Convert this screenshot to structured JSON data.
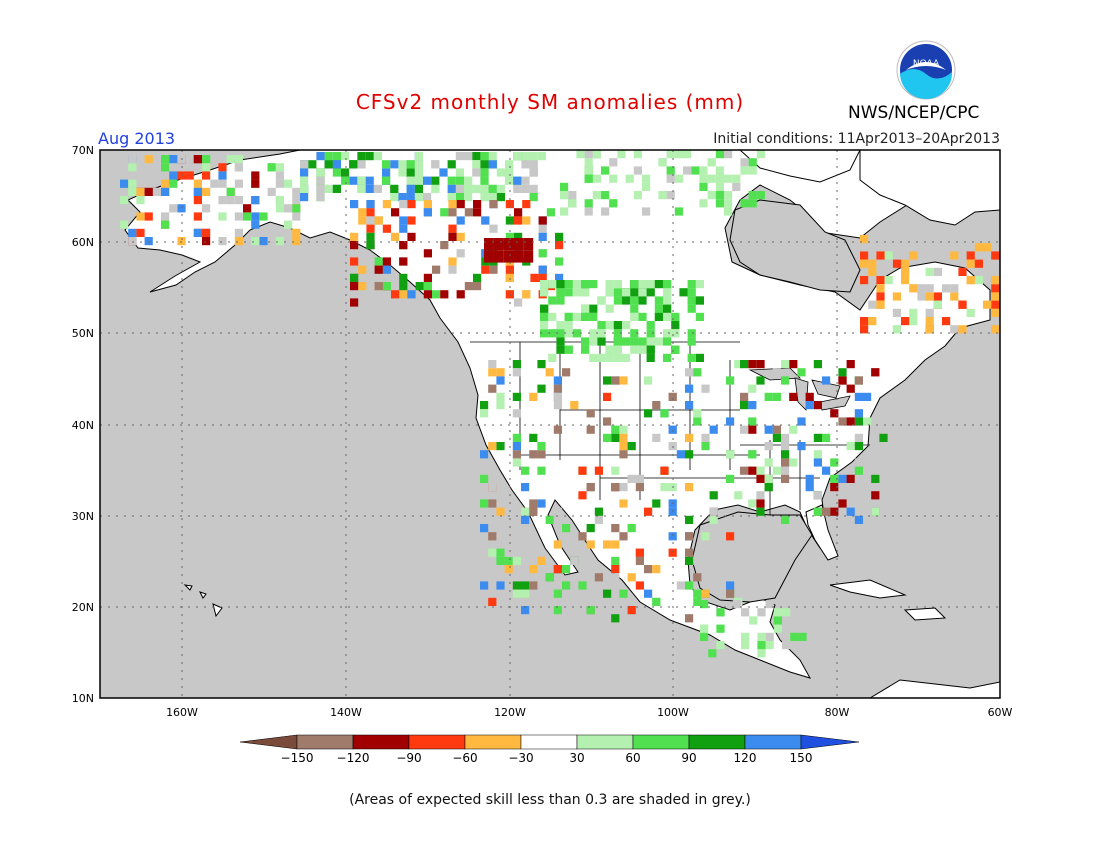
{
  "header": {
    "title": "CFSv2 monthly SM anomalies (mm)",
    "month": "Aug 2013",
    "initial_conditions": "Initial conditions: 11Apr2013–20Apr2013",
    "agency": "NWS/NCEP/CPC",
    "logo_text": "NOAA"
  },
  "map": {
    "lat_range": [
      10,
      70
    ],
    "lon_range": [
      -170,
      -60
    ],
    "lat_labels": [
      "70N",
      "60N",
      "50N",
      "40N",
      "30N",
      "20N",
      "10N"
    ],
    "lon_labels": [
      "160W",
      "140W",
      "120W",
      "100W",
      "80W",
      "60W"
    ],
    "land_color": "#ffffff",
    "ocean_color": "#c8c8c8",
    "grid": "dotted"
  },
  "colorbar": {
    "colors": [
      "#7a4a3a",
      "#a07a6a",
      "#a00000",
      "#ff3a10",
      "#ffb840",
      "#ffffff",
      "#b4f0b0",
      "#50e050",
      "#10a010",
      "#3c8cf0",
      "#2050e0"
    ],
    "labels": [
      "−150",
      "−120",
      "−90",
      "−60",
      "−30",
      "30",
      "60",
      "90",
      "120",
      "150"
    ]
  },
  "footnote": "(Areas of expected skill less than 0.3 are shaded in grey.)"
}
